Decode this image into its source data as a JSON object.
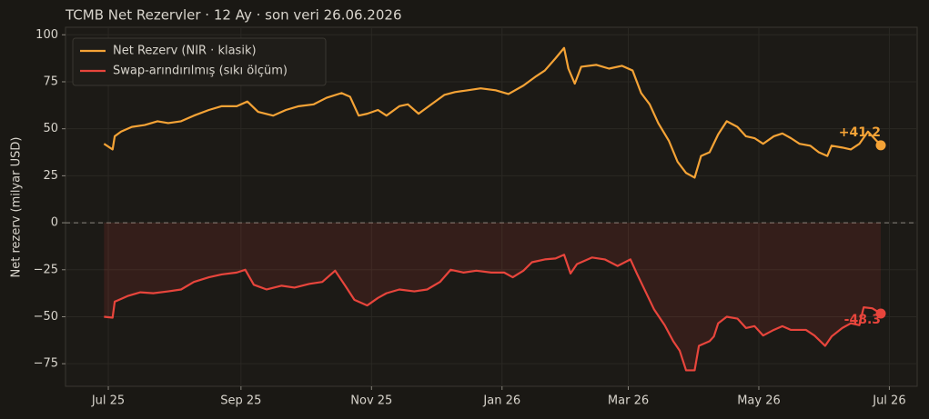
{
  "chart_data": {
    "type": "line",
    "title": "TCMB Net Rezervler · 12 Ay · son veri 26.06.2026",
    "y_label": "Net rezerv (milyar USD)",
    "xlim": [
      -20,
      378
    ],
    "ylim": [
      -87,
      104
    ],
    "xticks": [
      {
        "value": 0,
        "label": "Jul 25"
      },
      {
        "value": 62,
        "label": "Sep 25"
      },
      {
        "value": 123,
        "label": "Nov 25"
      },
      {
        "value": 184,
        "label": "Jan 26"
      },
      {
        "value": 243,
        "label": "Mar 26"
      },
      {
        "value": 304,
        "label": "May 26"
      },
      {
        "value": 365,
        "label": "Jul 26"
      }
    ],
    "yticks": [
      {
        "value": -75,
        "label": "−75"
      },
      {
        "value": -50,
        "label": "−50"
      },
      {
        "value": -25,
        "label": "−25"
      },
      0,
      25,
      50,
      75,
      100
    ],
    "grid": true,
    "legend": "upper left",
    "zero_line": true,
    "series": [
      {
        "name": "Net Rezerv (NIR · klasik)",
        "color": "#f5a336",
        "last_label": "+41.2",
        "x": [
          -2,
          2,
          3,
          6,
          11,
          17,
          23,
          28,
          34,
          40,
          47,
          53,
          60,
          65,
          70,
          77,
          83,
          89,
          96,
          102,
          109,
          113,
          117,
          121,
          126,
          130,
          136,
          140,
          145,
          151,
          157,
          162,
          168,
          174,
          181,
          187,
          194,
          200,
          204,
          209,
          213,
          215,
          218,
          221,
          228,
          234,
          240,
          245,
          249,
          253,
          257,
          262,
          266,
          270,
          274,
          277,
          281,
          285,
          289,
          294,
          298,
          302,
          306,
          311,
          315,
          319,
          323,
          328,
          332,
          336,
          338,
          343,
          347,
          351,
          355,
          361
        ],
        "values": [
          42,
          39,
          46,
          48.5,
          51,
          52,
          54,
          53,
          54,
          57,
          60,
          62,
          62,
          64.5,
          59,
          57,
          60,
          62,
          63,
          66.5,
          69,
          67,
          57,
          58,
          60,
          57,
          62,
          63,
          58,
          63,
          68,
          69.5,
          70.5,
          71.5,
          70.5,
          68.5,
          73,
          78,
          81,
          87.5,
          93,
          82,
          74,
          83,
          84,
          82,
          83.5,
          81,
          69,
          63,
          53,
          43.5,
          32.5,
          26.5,
          24,
          35.5,
          37.5,
          47,
          54,
          51,
          46,
          45,
          42,
          46,
          47.5,
          45,
          42,
          41,
          37.5,
          35.5,
          41,
          40,
          39,
          42,
          48.5,
          41.2
        ]
      },
      {
        "name": "Swap-arındırılmış (sıkı ölçüm)",
        "color": "#e8453c",
        "last_label": "-48.3",
        "fill_to_zero": true,
        "x": [
          -2,
          2,
          3,
          9,
          15,
          21,
          28,
          34,
          40,
          47,
          53,
          60,
          64,
          68,
          74,
          81,
          87,
          94,
          100,
          106,
          111,
          115,
          121,
          126,
          130,
          136,
          143,
          149,
          155,
          160,
          166,
          172,
          179,
          185,
          189,
          194,
          198,
          204,
          209,
          213,
          216,
          219,
          226,
          232,
          238,
          244,
          247,
          251,
          255,
          260,
          264,
          267,
          270,
          274,
          276,
          281,
          283,
          285,
          289,
          294,
          298,
          302,
          306,
          311,
          315,
          319,
          326,
          330,
          335,
          338,
          343,
          347,
          351,
          353,
          357,
          361
        ],
        "values": [
          -50,
          -50.5,
          -42,
          -39,
          -37,
          -37.5,
          -36.5,
          -35.5,
          -31.5,
          -29,
          -27.5,
          -26.5,
          -25,
          -33,
          -35.5,
          -33.5,
          -34.5,
          -32.5,
          -31.5,
          -25.5,
          -34,
          -41,
          -44,
          -40,
          -37.5,
          -35.5,
          -36.5,
          -35.5,
          -31.5,
          -25,
          -26.5,
          -25.5,
          -26.5,
          -26.5,
          -29,
          -25.5,
          -21,
          -19.5,
          -19,
          -17,
          -27,
          -22,
          -18.5,
          -19.5,
          -23,
          -19.5,
          -27,
          -36.5,
          -46,
          -54.5,
          -63,
          -68,
          -78.5,
          -78.5,
          -65.5,
          -63,
          -60.5,
          -53.5,
          -50,
          -51,
          -56,
          -55,
          -60,
          -57,
          -55,
          -57,
          -57,
          -60,
          -65.5,
          -60.5,
          -56,
          -53.5,
          -54.5,
          -45,
          -45.5,
          -48.3
        ]
      }
    ]
  }
}
